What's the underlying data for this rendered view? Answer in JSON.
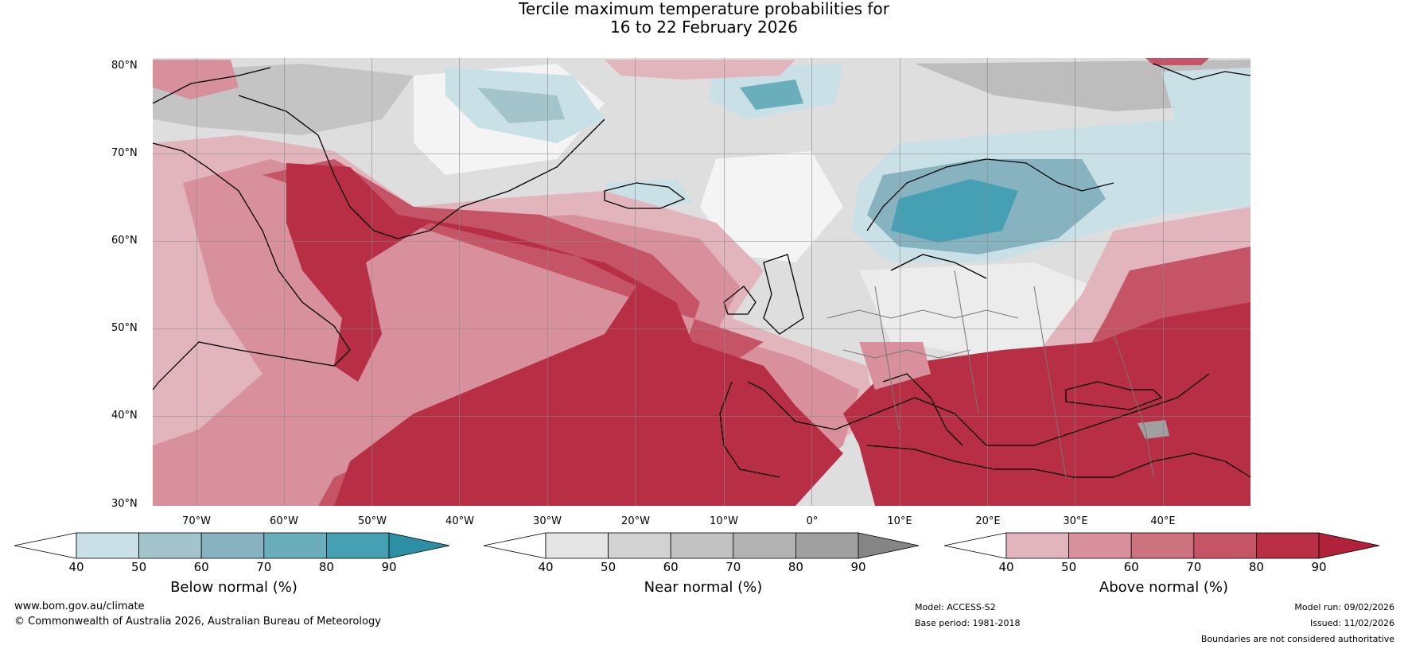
{
  "title": {
    "line1": "Tercile maximum temperature probabilities for",
    "line2": "16 to 22 February 2026"
  },
  "map": {
    "region": "North Atlantic and Europe",
    "lat_labels": [
      "80°N",
      "70°N",
      "60°N",
      "50°N",
      "40°N",
      "30°N"
    ],
    "lon_labels": [
      "70°W",
      "60°W",
      "50°W",
      "40°W",
      "30°W",
      "20°W",
      "10°W",
      "0°",
      "10°E",
      "20°E",
      "30°E",
      "40°E"
    ],
    "colors": {
      "below": [
        "#c9e0e6",
        "#a4c4cc",
        "#87b3c1",
        "#6aaebb",
        "#45a0b3",
        "#2c8fa3"
      ],
      "near": [
        "#e5e5e5",
        "#d2d2d2",
        "#c2c2c2",
        "#b3b3b3",
        "#a0a0a0",
        "#858585"
      ],
      "above": [
        "#e2b4bc",
        "#d8909c",
        "#cd727f",
        "#c55566",
        "#b72e45",
        "#b2213a"
      ]
    }
  },
  "colorbars": [
    {
      "name": "Below normal (%)",
      "ticks": [
        "40",
        "50",
        "60",
        "70",
        "80",
        "90"
      ]
    },
    {
      "name": "Near normal (%)",
      "ticks": [
        "40",
        "50",
        "60",
        "70",
        "80",
        "90"
      ]
    },
    {
      "name": "Above normal (%)",
      "ticks": [
        "40",
        "50",
        "60",
        "70",
        "80",
        "90"
      ]
    }
  ],
  "footer": {
    "url": "www.bom.gov.au/climate",
    "copyright": "© Commonwealth of Australia 2026, Australian Bureau of Meteorology",
    "model": "Model: ACCESS-S2",
    "base_period": "Base period: 1981-2018",
    "model_run": "Model run: 09/02/2026",
    "issued": "Issued: 11/02/2026",
    "disclaimer": "Boundaries are not considered authoritative"
  }
}
